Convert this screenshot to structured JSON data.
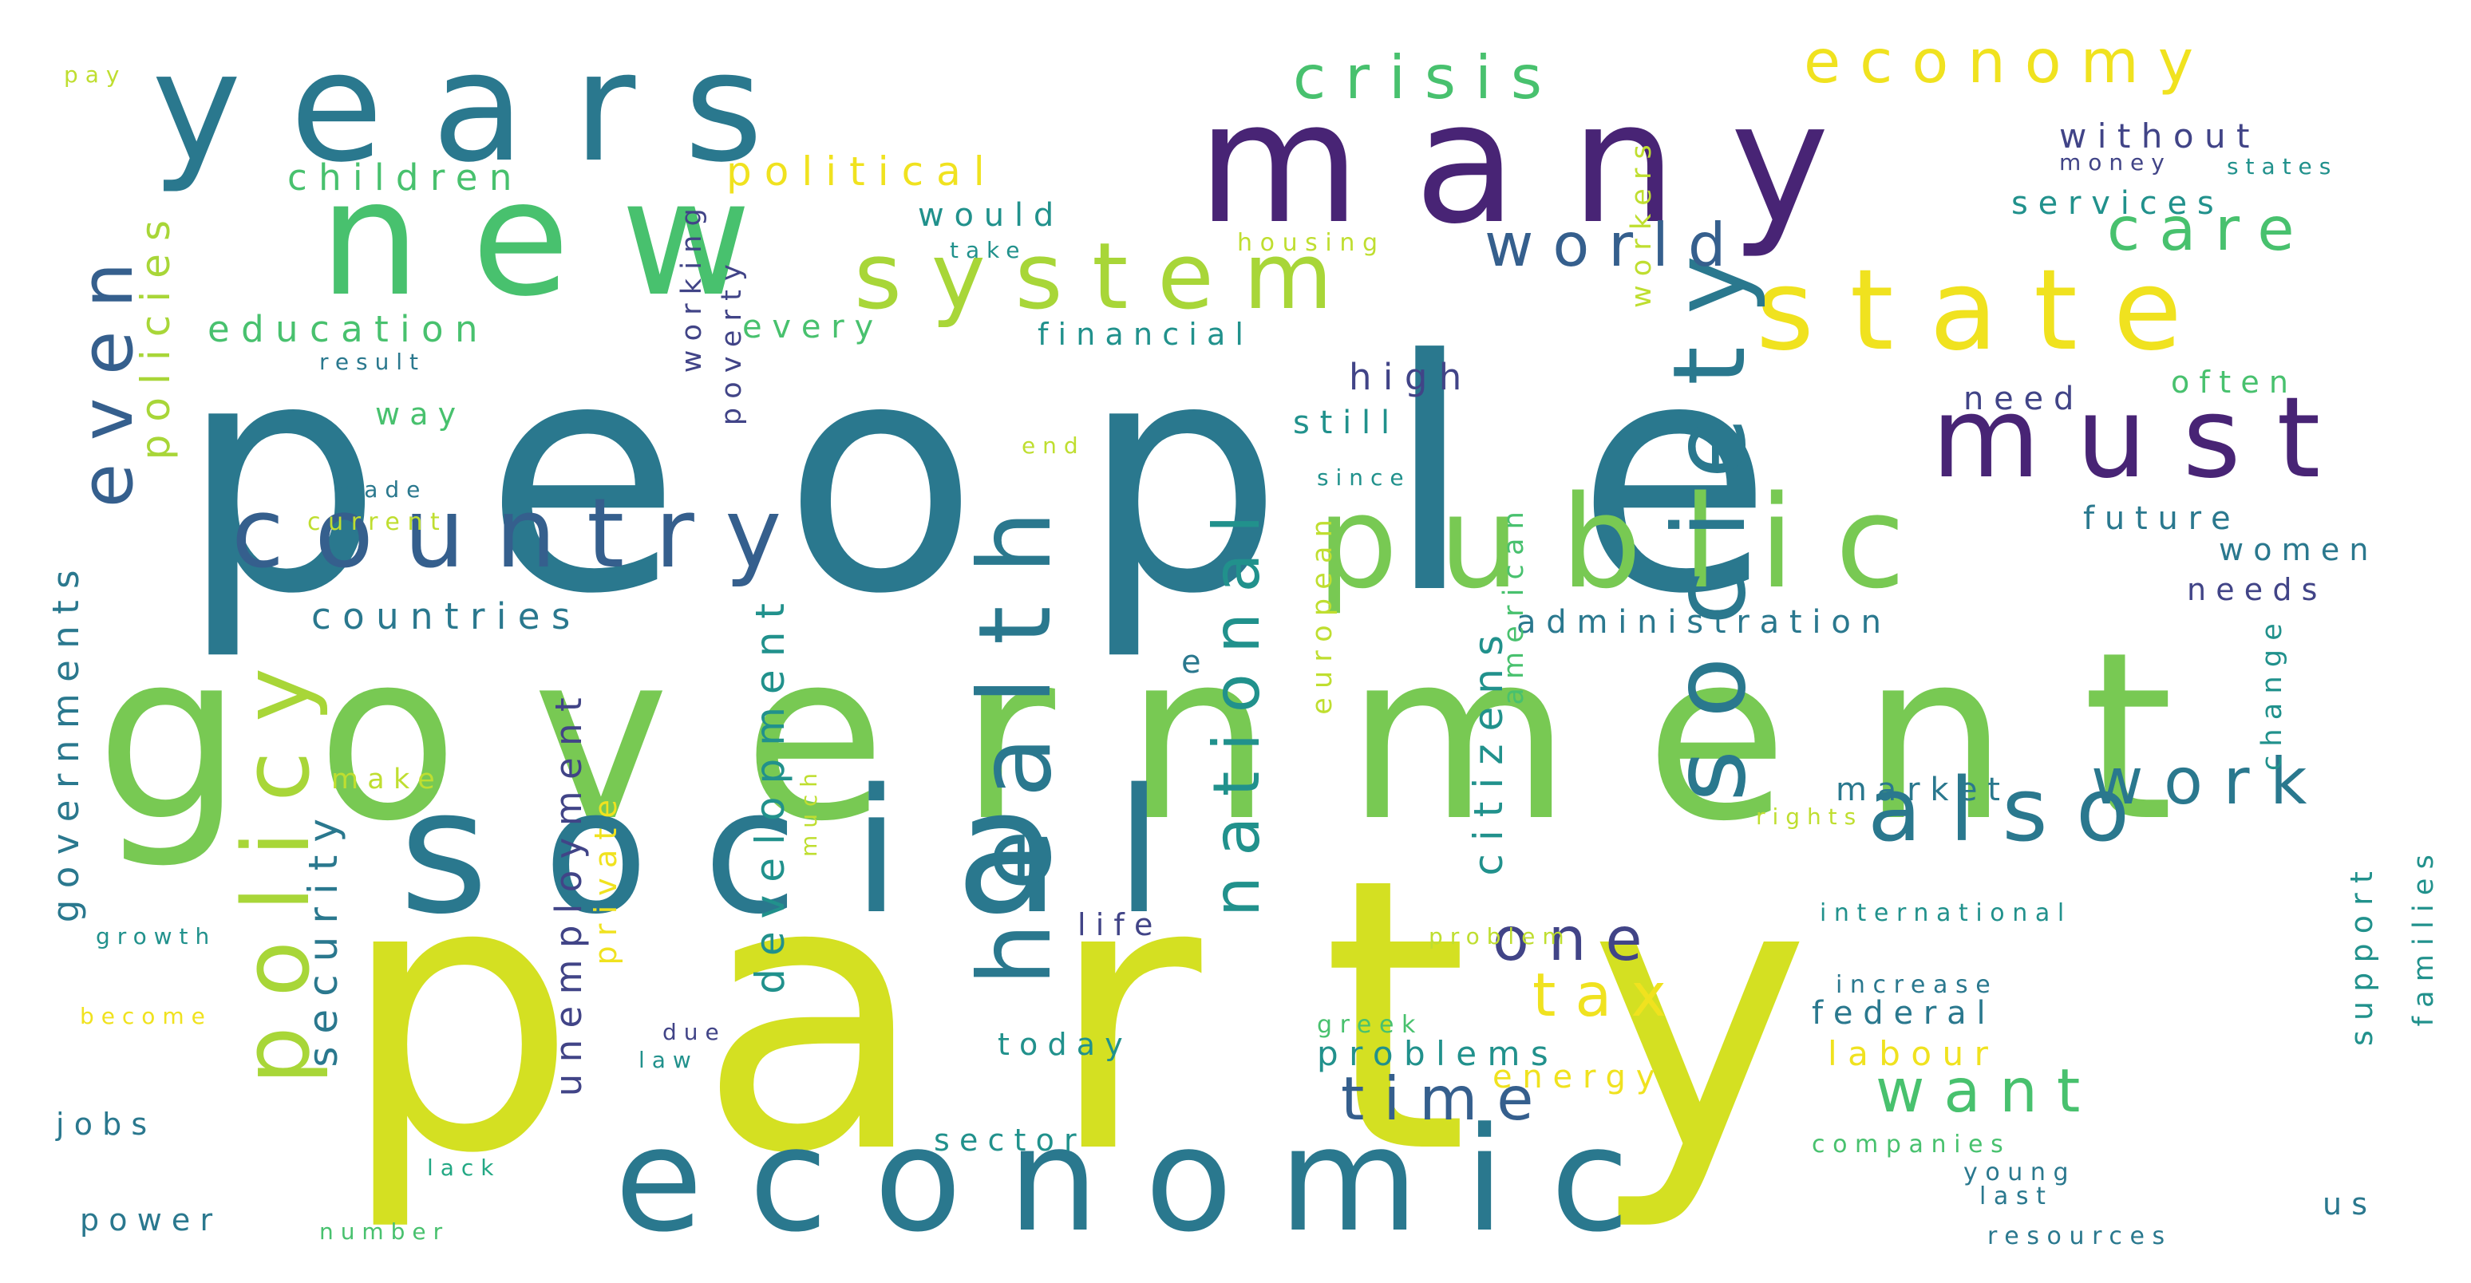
{
  "palette": {
    "yellow": "#d4e022",
    "lime": "#a8d638",
    "green": "#78c953",
    "mint": "#48c16e",
    "teal": "#23a884",
    "seagreen": "#21918c",
    "steel": "#2a788e",
    "blue": "#355f8d",
    "indigo": "#414487",
    "purple": "#482475",
    "dark": "#440154",
    "gold": "#f0e21f",
    "pale": "#bfde30"
  },
  "words": [
    "people",
    "party",
    "government",
    "social",
    "economic",
    "years",
    "many",
    "new",
    "country",
    "public",
    "state",
    "must",
    "system",
    "also",
    "health",
    "society",
    "work",
    "policy",
    "crisis",
    "economy",
    "even",
    "world",
    "care",
    "time",
    "want",
    "national",
    "tax",
    "one",
    "countries",
    "political",
    "children",
    "education",
    "security",
    "development",
    "unemployment",
    "citizens",
    "every",
    "would",
    "financial",
    "high",
    "still",
    "way",
    "without",
    "services",
    "need",
    "often",
    "future",
    "women",
    "needs",
    "administration",
    "market",
    "labour",
    "problems",
    "federal",
    "today",
    "sector",
    "life",
    "energy",
    "policies",
    "governments",
    "jobs",
    "power",
    "growth",
    "become",
    "private",
    "working",
    "poverty",
    "workers",
    "american",
    "european",
    "change",
    "support",
    "families",
    "us",
    "international",
    "increase",
    "companies",
    "young",
    "last",
    "resources",
    "rights",
    "greek",
    "due",
    "law",
    "lack",
    "number",
    "problem",
    "much",
    "make",
    "current",
    "made",
    "result",
    "end",
    "since",
    "housing",
    "take",
    "money",
    "states",
    "pay",
    "e"
  ]
}
